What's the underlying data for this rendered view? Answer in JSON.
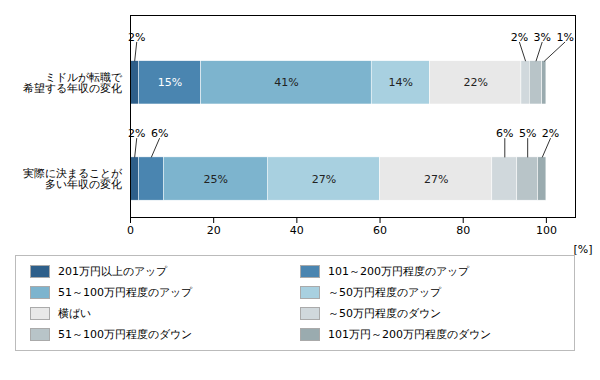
{
  "chart_data": {
    "type": "bar",
    "orientation": "horizontal",
    "stacked": true,
    "data_labels": true,
    "categories": [
      "ミドルが転職で\n希望する年収の変化",
      "実際に決まることが\n多い年収の変化"
    ],
    "series": [
      {
        "name": "201万円以上のアップ",
        "color": "#2e5f8a",
        "values": [
          2,
          2
        ],
        "value_labels": [
          "2%",
          "2%"
        ]
      },
      {
        "name": "101～200万円程度のアップ",
        "color": "#4a85b0",
        "values": [
          15,
          6
        ],
        "value_labels": [
          "15%",
          "6%"
        ]
      },
      {
        "name": "51～100万円程度のアップ",
        "color": "#7db4ce",
        "values": [
          41,
          25
        ],
        "value_labels": [
          "41%",
          "25%"
        ]
      },
      {
        "name": "～50万円程度のアップ",
        "color": "#a8d0e0",
        "values": [
          14,
          27
        ],
        "value_labels": [
          "14%",
          "27%"
        ]
      },
      {
        "name": "横ばい",
        "color": "#e8e8e8",
        "values": [
          22,
          27
        ],
        "value_labels": [
          "22%",
          "27%"
        ]
      },
      {
        "name": "～50万円程度のダウン",
        "color": "#d0d8dc",
        "values": [
          2,
          6
        ],
        "value_labels": [
          "2%",
          "6%"
        ]
      },
      {
        "name": "51～100万円程度のダウン",
        "color": "#b8c4c8",
        "values": [
          3,
          5
        ],
        "value_labels": [
          "3%",
          "5%"
        ]
      },
      {
        "name": "101万円～200万円程度のダウン",
        "color": "#9aabaf",
        "values": [
          1,
          2
        ],
        "value_labels": [
          "1%",
          "2%"
        ]
      }
    ],
    "xlim": [
      0,
      107
    ],
    "xticks": [
      0,
      20,
      40,
      60,
      80,
      100
    ],
    "xlabel": "[%]"
  }
}
